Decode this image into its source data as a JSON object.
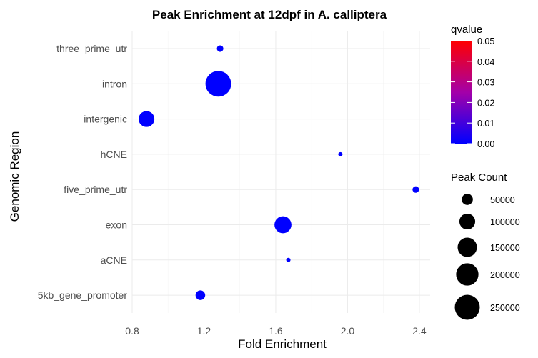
{
  "chart_data": {
    "type": "scatter",
    "title": "Peak Enrichment at 12dpf in A. calliptera",
    "xlabel": "Fold Enrichment",
    "ylabel": "Genomic Region",
    "xlim": [
      0.8,
      2.46
    ],
    "x_ticks": [
      0.8,
      1.2,
      1.6,
      2.0,
      2.4
    ],
    "x_tick_labels": [
      "0.8",
      "1.2",
      "1.6",
      "2.0",
      "2.4"
    ],
    "categories": [
      "three_prime_utr",
      "intron",
      "intergenic",
      "hCNE",
      "five_prime_utr",
      "exon",
      "aCNE",
      "5kb_gene_promoter"
    ],
    "points": [
      {
        "category": "three_prime_utr",
        "fold_enrichment": 1.29,
        "peak_count": 17000,
        "qvalue": 0.0
      },
      {
        "category": "intron",
        "fold_enrichment": 1.28,
        "peak_count": 265000,
        "qvalue": 0.0
      },
      {
        "category": "intergenic",
        "fold_enrichment": 0.88,
        "peak_count": 100000,
        "qvalue": 0.0
      },
      {
        "category": "hCNE",
        "fold_enrichment": 1.96,
        "peak_count": 5000,
        "qvalue": 0.0
      },
      {
        "category": "five_prime_utr",
        "fold_enrichment": 2.38,
        "peak_count": 17000,
        "qvalue": 0.0
      },
      {
        "category": "exon",
        "fold_enrichment": 1.64,
        "peak_count": 115000,
        "qvalue": 0.0
      },
      {
        "category": "aCNE",
        "fold_enrichment": 1.67,
        "peak_count": 2500,
        "qvalue": 0.0
      },
      {
        "category": "5kb_gene_promoter",
        "fold_enrichment": 1.18,
        "peak_count": 37000,
        "qvalue": 0.0
      }
    ],
    "grid": true,
    "legends": {
      "color": {
        "title": "qvalue",
        "range": [
          0.0,
          0.05
        ],
        "ticks": [
          "0.00",
          "0.01",
          "0.02",
          "0.03",
          "0.04",
          "0.05"
        ],
        "low_color": "#0000ff",
        "high_color": "#ff0000",
        "position": "right-top"
      },
      "size": {
        "title": "Peak Count",
        "breaks": [
          50000,
          100000,
          150000,
          200000,
          250000
        ],
        "labels": [
          "50000",
          "100000",
          "150000",
          "200000",
          "250000"
        ],
        "position": "right-bottom"
      }
    }
  }
}
